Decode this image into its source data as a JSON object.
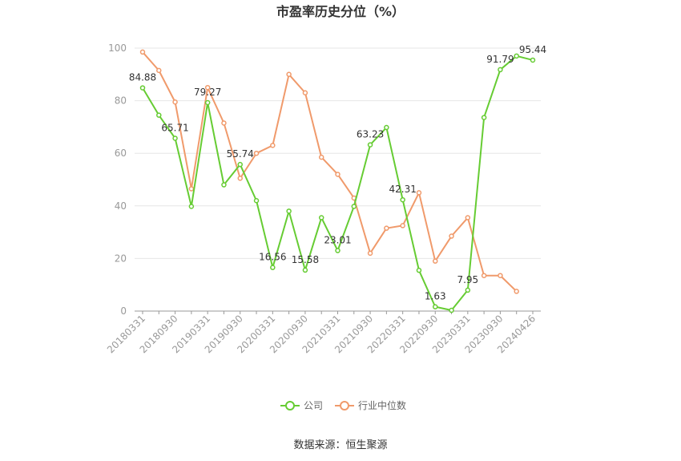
{
  "chart_data": {
    "type": "line",
    "title": "市盈率历史分位（%）",
    "source": "数据来源：恒生聚源",
    "xlabel": "",
    "ylabel": "",
    "ylim": [
      0,
      100
    ],
    "yticks": [
      "0",
      "20",
      "40",
      "60",
      "80",
      "100"
    ],
    "grid": true,
    "legend_position": "bottom",
    "x": [
      "20180331",
      "20180630",
      "20180930",
      "20181231",
      "20190331",
      "20190630",
      "20190930",
      "20191231",
      "20200331",
      "20200630",
      "20200930",
      "20201231",
      "20210331",
      "20210630",
      "20210930",
      "20211231",
      "20220331",
      "20220630",
      "20220930",
      "20221231",
      "20230331",
      "20230630",
      "20230930",
      "20231231",
      "20240426"
    ],
    "x_tick_labels": [
      "20180331",
      "20180930",
      "20190331",
      "20190930",
      "20200331",
      "20200930",
      "20210331",
      "20210930",
      "20220331",
      "20220930",
      "20230331",
      "20230930",
      "20240426"
    ],
    "series": [
      {
        "name": "公司",
        "color": "#66cc33",
        "values": [
          84.88,
          74.5,
          65.71,
          39.8,
          79.27,
          48.0,
          55.74,
          42.0,
          16.56,
          38.0,
          15.58,
          35.5,
          23.01,
          39.8,
          63.23,
          69.8,
          42.31,
          15.5,
          1.63,
          0.3,
          7.95,
          73.6,
          91.79,
          97.0,
          95.44
        ],
        "labels": {
          "0": "84.88",
          "2": "65.71",
          "4": "79.27",
          "6": "55.74",
          "8": "16.56",
          "10": "15.58",
          "12": "23.01",
          "14": "63.23",
          "16": "42.31",
          "18": "1.63",
          "20": "7.95",
          "22": "91.79",
          "24": "95.44"
        }
      },
      {
        "name": "行业中位数",
        "color": "#f09a6b",
        "values": [
          98.5,
          91.5,
          79.5,
          46.5,
          85.0,
          71.5,
          50.5,
          60.0,
          63.0,
          90.0,
          83.0,
          58.5,
          52.0,
          43.0,
          22.0,
          31.5,
          32.5,
          45.0,
          19.0,
          28.5,
          35.5,
          13.5,
          13.5,
          7.5,
          null
        ]
      }
    ]
  }
}
